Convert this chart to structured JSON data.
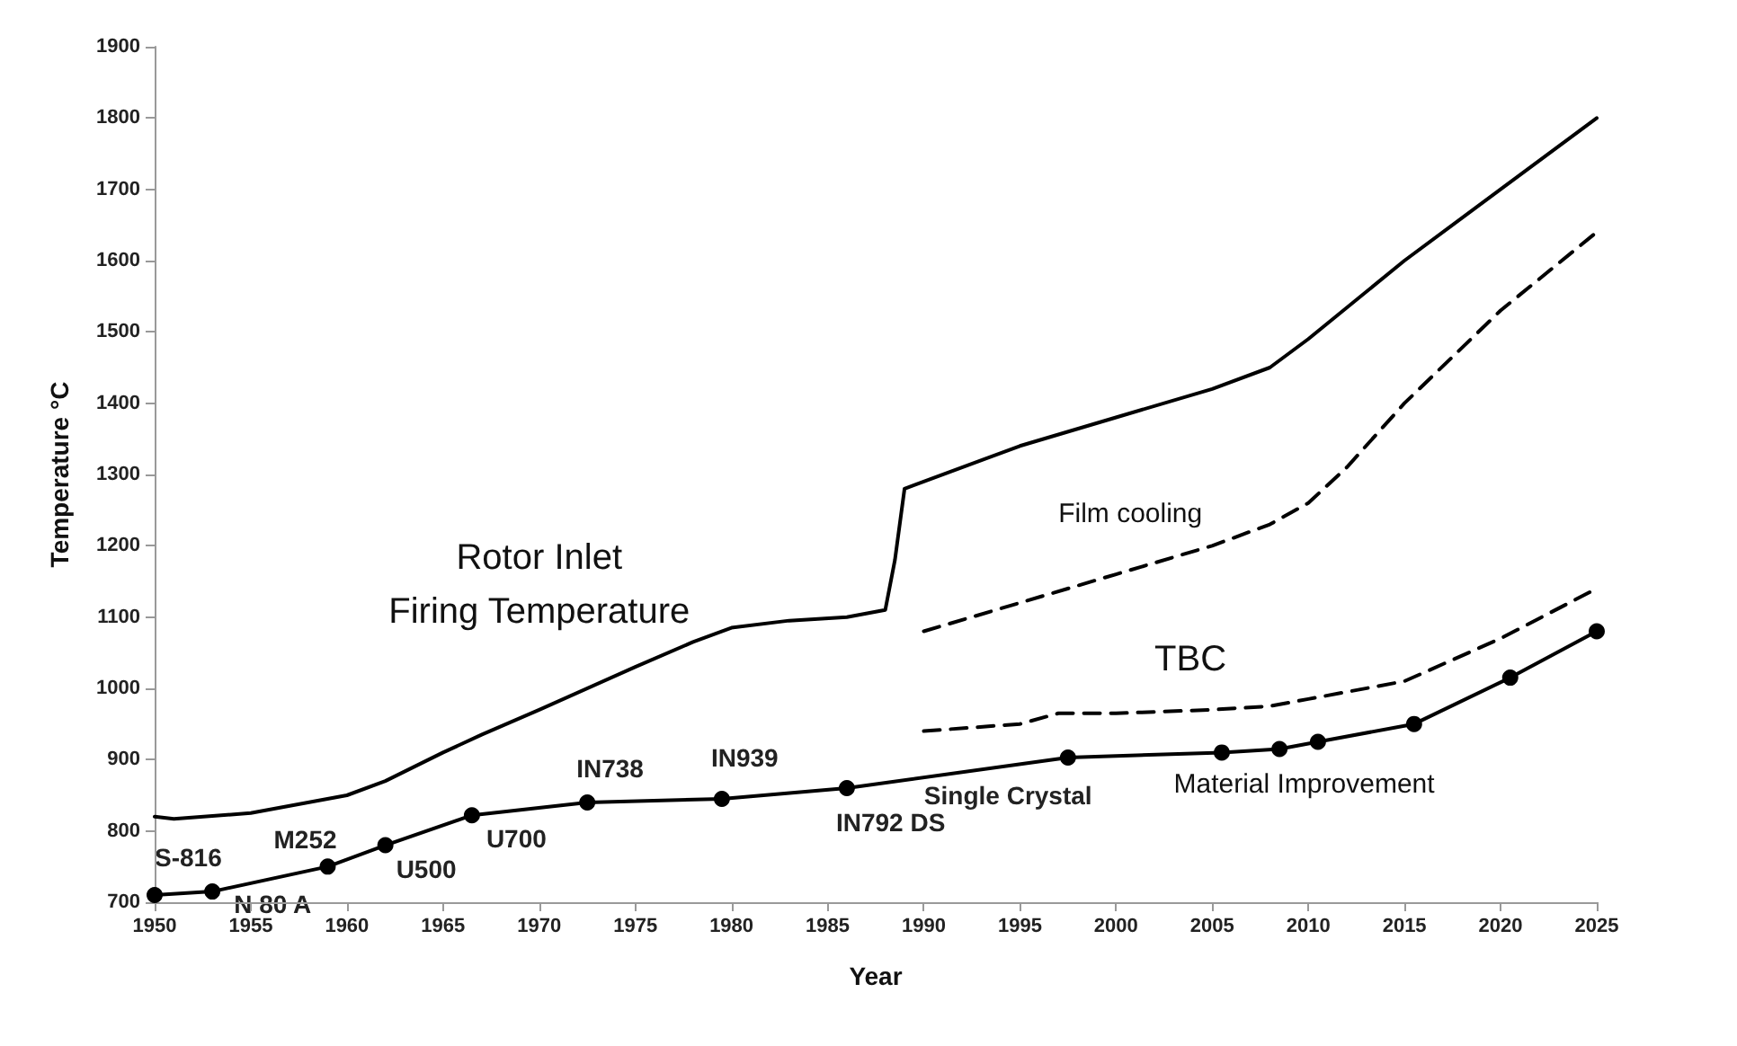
{
  "chart_data": {
    "type": "line",
    "xlabel": "Year",
    "ylabel": "Temperature °C",
    "xlim": [
      1950,
      2025
    ],
    "xticks": [
      1950,
      1955,
      1960,
      1965,
      1970,
      1975,
      1980,
      1985,
      1990,
      1995,
      2000,
      2005,
      2010,
      2015,
      2020,
      2025
    ],
    "ylim": [
      700,
      1900
    ],
    "yticks": [
      700,
      800,
      900,
      1000,
      1100,
      1200,
      1300,
      1400,
      1500,
      1600,
      1700,
      1800,
      1900
    ],
    "grid": false,
    "legend": false,
    "series": [
      {
        "name": "Rotor Inlet\nFiring Temperature",
        "color": "#000000",
        "line_style": "solid",
        "marker": "none",
        "x": [
          1950,
          1951,
          1955,
          1960,
          1962,
          1965,
          1967,
          1970,
          1975,
          1978,
          1980,
          1983,
          1986,
          1988,
          1988.5,
          1989,
          1990,
          1995,
          2000,
          2005,
          2008,
          2010,
          2015,
          2020,
          2025
        ],
        "values": [
          820,
          817,
          825,
          850,
          870,
          910,
          935,
          970,
          1030,
          1065,
          1085,
          1095,
          1100,
          1110,
          1180,
          1280,
          1290,
          1340,
          1380,
          1420,
          1450,
          1490,
          1600,
          1700,
          1800
        ]
      },
      {
        "name": "Film cooling",
        "color": "#000000",
        "line_style": "dashed",
        "marker": "none",
        "x": [
          1990,
          1995,
          2000,
          2005,
          2008,
          2010,
          2012,
          2015,
          2020,
          2025
        ],
        "values": [
          1080,
          1120,
          1160,
          1200,
          1230,
          1260,
          1310,
          1400,
          1530,
          1640
        ]
      },
      {
        "name": "TBC",
        "color": "#000000",
        "line_style": "dashed",
        "marker": "none",
        "x": [
          1990,
          1995,
          1997,
          2000,
          2005,
          2008,
          2010,
          2015,
          2020,
          2025
        ],
        "values": [
          940,
          950,
          965,
          965,
          970,
          975,
          985,
          1010,
          1070,
          1140
        ]
      },
      {
        "name": "Material Improvement",
        "color": "#000000",
        "line_style": "solid",
        "marker": "circle",
        "x": [
          1950,
          1953,
          1959,
          1962,
          1966.5,
          1972.5,
          1979.5,
          1986,
          1997.5,
          2005.5,
          2008.5,
          2010.5,
          2015.5,
          2020.5,
          2025
        ],
        "values": [
          710,
          715,
          750,
          780,
          822,
          840,
          845,
          860,
          903,
          910,
          915,
          925,
          950,
          1015,
          1080
        ]
      }
    ],
    "annotations": [
      {
        "text": "S-816",
        "x": 1950,
        "y": 710
      },
      {
        "text": "N 80 A",
        "x": 1953,
        "y": 715
      },
      {
        "text": "M252",
        "x": 1959,
        "y": 750
      },
      {
        "text": "U500",
        "x": 1962,
        "y": 780
      },
      {
        "text": "U700",
        "x": 1966.5,
        "y": 822
      },
      {
        "text": "IN738",
        "x": 1972.5,
        "y": 840
      },
      {
        "text": "IN939",
        "x": 1979.5,
        "y": 845
      },
      {
        "text": "IN792 DS",
        "x": 1986,
        "y": 860
      },
      {
        "text": "Single Crystal",
        "x": 1997.5,
        "y": 903
      }
    ]
  }
}
